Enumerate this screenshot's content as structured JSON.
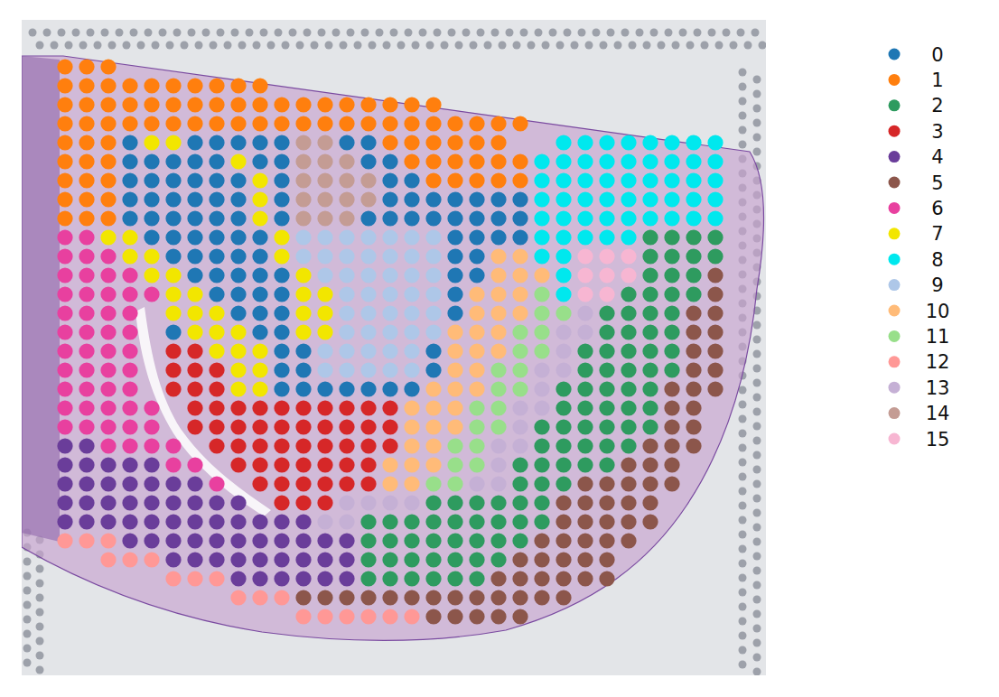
{
  "chart_data": {
    "type": "spatial",
    "legend": "right",
    "categories": [
      "0",
      "1",
      "2",
      "3",
      "4",
      "5",
      "6",
      "7",
      "8",
      "9",
      "10",
      "11",
      "12",
      "13",
      "14",
      "15"
    ],
    "colors": [
      "#1f77b4",
      "#ff7f0e",
      "#2e9b5f",
      "#d62728",
      "#6a3d9a",
      "#8c564b",
      "#e8409f",
      "#f2e600",
      "#00e8ee",
      "#aec7e8",
      "#ffbb78",
      "#98df8a",
      "#ff9896",
      "#c5b0d5",
      "#c49c94",
      "#f7b6d2"
    ],
    "cells": [
      [
        1,
        1,
        1,
        null,
        null,
        null,
        null,
        null,
        null,
        null,
        null,
        null,
        null,
        null,
        null,
        null,
        null,
        null,
        null,
        null,
        null,
        null,
        null,
        null,
        null,
        null,
        null,
        null,
        null,
        null,
        null,
        null
      ],
      [
        1,
        1,
        1,
        1,
        1,
        1,
        1,
        1,
        1,
        1,
        null,
        null,
        null,
        null,
        null,
        null,
        null,
        null,
        null,
        null,
        null,
        null,
        null,
        null,
        null,
        null,
        null,
        null,
        null,
        null,
        null,
        null
      ],
      [
        1,
        1,
        1,
        1,
        1,
        1,
        1,
        1,
        1,
        1,
        1,
        1,
        1,
        1,
        1,
        1,
        1,
        1,
        null,
        null,
        null,
        null,
        null,
        null,
        null,
        null,
        null,
        null,
        null,
        null,
        null,
        null
      ],
      [
        1,
        1,
        1,
        1,
        1,
        1,
        1,
        1,
        1,
        1,
        1,
        1,
        1,
        1,
        1,
        1,
        1,
        1,
        1,
        1,
        1,
        1,
        null,
        null,
        null,
        null,
        null,
        null,
        null,
        null,
        null,
        null
      ],
      [
        1,
        1,
        1,
        0,
        7,
        7,
        0,
        0,
        0,
        0,
        0,
        14,
        14,
        0,
        0,
        1,
        1,
        1,
        1,
        1,
        1,
        null,
        null,
        8,
        8,
        8,
        8,
        8,
        8,
        8,
        8,
        null
      ],
      [
        1,
        1,
        1,
        0,
        0,
        0,
        0,
        0,
        7,
        0,
        0,
        14,
        14,
        14,
        0,
        0,
        1,
        1,
        1,
        1,
        1,
        1,
        8,
        8,
        8,
        8,
        8,
        8,
        8,
        8,
        8,
        null
      ],
      [
        1,
        1,
        1,
        0,
        0,
        0,
        0,
        0,
        0,
        7,
        0,
        14,
        14,
        14,
        14,
        0,
        0,
        1,
        1,
        1,
        1,
        1,
        8,
        8,
        8,
        8,
        8,
        8,
        8,
        8,
        8,
        null
      ],
      [
        1,
        1,
        1,
        0,
        0,
        0,
        0,
        0,
        0,
        7,
        0,
        14,
        14,
        14,
        14,
        0,
        0,
        0,
        0,
        0,
        0,
        0,
        8,
        8,
        8,
        8,
        8,
        8,
        8,
        8,
        8,
        null
      ],
      [
        1,
        1,
        1,
        0,
        0,
        0,
        0,
        0,
        0,
        7,
        0,
        14,
        14,
        14,
        0,
        0,
        0,
        0,
        0,
        0,
        0,
        0,
        8,
        8,
        8,
        8,
        8,
        8,
        8,
        8,
        8,
        null
      ],
      [
        6,
        6,
        7,
        7,
        0,
        0,
        0,
        0,
        0,
        0,
        7,
        9,
        9,
        9,
        9,
        9,
        9,
        9,
        0,
        0,
        0,
        0,
        8,
        8,
        8,
        8,
        8,
        2,
        2,
        2,
        2,
        null
      ],
      [
        6,
        6,
        6,
        7,
        7,
        0,
        0,
        0,
        0,
        0,
        7,
        9,
        9,
        9,
        9,
        9,
        9,
        9,
        0,
        0,
        10,
        10,
        8,
        8,
        15,
        15,
        15,
        2,
        2,
        2,
        2,
        null
      ],
      [
        6,
        6,
        6,
        6,
        7,
        7,
        0,
        0,
        0,
        0,
        0,
        7,
        9,
        9,
        9,
        9,
        9,
        9,
        0,
        0,
        10,
        10,
        10,
        8,
        15,
        15,
        15,
        2,
        2,
        2,
        5,
        null
      ],
      [
        6,
        6,
        6,
        6,
        6,
        7,
        7,
        0,
        0,
        0,
        0,
        7,
        7,
        9,
        9,
        9,
        9,
        9,
        0,
        10,
        10,
        10,
        11,
        8,
        15,
        15,
        2,
        2,
        2,
        2,
        5,
        null
      ],
      [
        6,
        6,
        6,
        6,
        null,
        7,
        7,
        7,
        0,
        0,
        0,
        7,
        7,
        9,
        9,
        9,
        9,
        9,
        0,
        10,
        10,
        10,
        11,
        11,
        13,
        2,
        2,
        2,
        2,
        5,
        5,
        null
      ],
      [
        6,
        6,
        6,
        6,
        null,
        0,
        7,
        7,
        7,
        0,
        0,
        7,
        7,
        9,
        9,
        9,
        9,
        9,
        10,
        10,
        10,
        11,
        11,
        13,
        13,
        2,
        2,
        2,
        2,
        5,
        5,
        null
      ],
      [
        6,
        6,
        6,
        6,
        null,
        3,
        3,
        7,
        7,
        7,
        0,
        0,
        9,
        9,
        9,
        9,
        9,
        0,
        10,
        10,
        10,
        11,
        11,
        13,
        2,
        2,
        2,
        2,
        2,
        5,
        5,
        null
      ],
      [
        6,
        6,
        6,
        6,
        null,
        3,
        3,
        3,
        7,
        7,
        0,
        0,
        9,
        9,
        9,
        9,
        9,
        0,
        10,
        10,
        11,
        11,
        13,
        13,
        2,
        2,
        2,
        2,
        2,
        5,
        5,
        null
      ],
      [
        6,
        6,
        6,
        6,
        null,
        3,
        3,
        3,
        7,
        7,
        0,
        0,
        0,
        0,
        0,
        0,
        0,
        10,
        10,
        10,
        11,
        11,
        13,
        2,
        2,
        2,
        2,
        2,
        5,
        5,
        5,
        null
      ],
      [
        6,
        6,
        6,
        6,
        6,
        null,
        3,
        3,
        3,
        3,
        3,
        3,
        3,
        3,
        3,
        3,
        10,
        10,
        10,
        11,
        11,
        13,
        13,
        2,
        2,
        2,
        2,
        2,
        5,
        5,
        null,
        null
      ],
      [
        6,
        6,
        6,
        6,
        6,
        null,
        3,
        3,
        3,
        3,
        3,
        3,
        3,
        3,
        3,
        3,
        10,
        10,
        10,
        11,
        11,
        13,
        2,
        2,
        2,
        2,
        2,
        2,
        5,
        5,
        null,
        null
      ],
      [
        4,
        4,
        6,
        6,
        6,
        6,
        null,
        3,
        3,
        3,
        3,
        3,
        3,
        3,
        3,
        3,
        10,
        10,
        11,
        11,
        13,
        13,
        2,
        2,
        2,
        2,
        2,
        5,
        5,
        5,
        null,
        null
      ],
      [
        4,
        4,
        4,
        4,
        4,
        6,
        6,
        null,
        3,
        3,
        3,
        3,
        3,
        3,
        3,
        10,
        10,
        10,
        11,
        11,
        13,
        2,
        2,
        2,
        2,
        2,
        5,
        5,
        5,
        null,
        null,
        null
      ],
      [
        4,
        4,
        4,
        4,
        4,
        4,
        4,
        6,
        null,
        3,
        3,
        3,
        3,
        3,
        3,
        10,
        10,
        11,
        11,
        13,
        13,
        2,
        2,
        2,
        5,
        5,
        5,
        5,
        5,
        null,
        null,
        null
      ],
      [
        4,
        4,
        4,
        4,
        4,
        4,
        4,
        4,
        4,
        null,
        3,
        3,
        3,
        13,
        13,
        13,
        13,
        2,
        2,
        2,
        2,
        2,
        2,
        5,
        5,
        5,
        5,
        5,
        null,
        null,
        null,
        null
      ],
      [
        4,
        4,
        4,
        4,
        4,
        4,
        4,
        4,
        4,
        4,
        4,
        4,
        13,
        13,
        2,
        2,
        2,
        2,
        2,
        2,
        2,
        2,
        2,
        5,
        5,
        5,
        5,
        5,
        null,
        null,
        null,
        null
      ],
      [
        12,
        12,
        12,
        4,
        4,
        4,
        4,
        4,
        4,
        4,
        4,
        4,
        4,
        4,
        2,
        2,
        2,
        2,
        2,
        2,
        2,
        2,
        5,
        5,
        5,
        5,
        5,
        null,
        null,
        null,
        null,
        null
      ],
      [
        null,
        null,
        12,
        12,
        12,
        4,
        4,
        4,
        4,
        4,
        4,
        4,
        4,
        4,
        2,
        2,
        2,
        2,
        2,
        2,
        2,
        5,
        5,
        5,
        5,
        5,
        null,
        null,
        null,
        null,
        null,
        null
      ],
      [
        null,
        null,
        null,
        null,
        null,
        12,
        12,
        12,
        4,
        4,
        4,
        4,
        4,
        4,
        2,
        2,
        2,
        2,
        2,
        2,
        5,
        5,
        5,
        5,
        5,
        5,
        null,
        null,
        null,
        null,
        null,
        null
      ],
      [
        null,
        null,
        null,
        null,
        null,
        null,
        null,
        null,
        12,
        12,
        12,
        5,
        5,
        5,
        5,
        5,
        5,
        5,
        5,
        5,
        5,
        5,
        5,
        5,
        null,
        null,
        null,
        null,
        null,
        null,
        null,
        null
      ],
      [
        null,
        null,
        null,
        null,
        null,
        null,
        null,
        null,
        null,
        null,
        null,
        12,
        12,
        12,
        12,
        12,
        12,
        5,
        5,
        5,
        5,
        5,
        null,
        null,
        null,
        null,
        null,
        null,
        null,
        null,
        null,
        null
      ]
    ]
  }
}
